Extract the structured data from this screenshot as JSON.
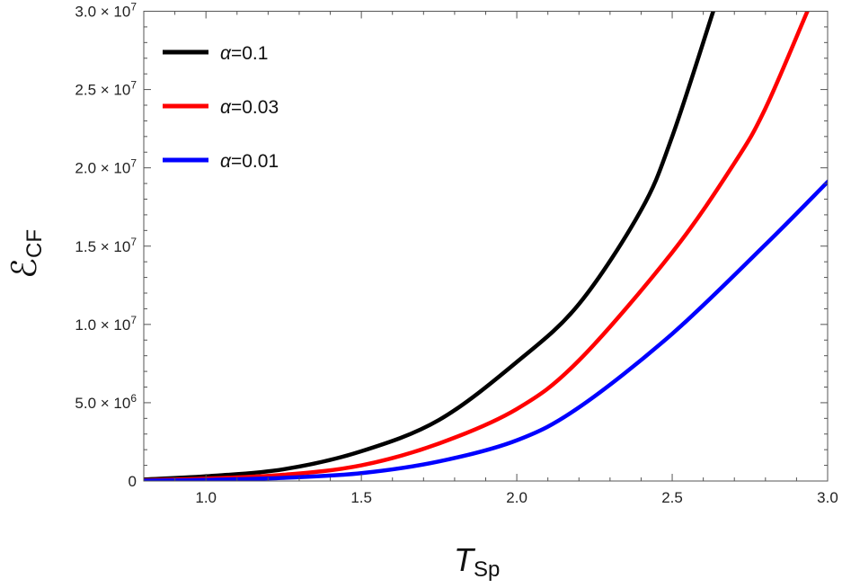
{
  "chart_data": {
    "type": "line",
    "title": "",
    "xlabel": {
      "main": "T",
      "sub": "Sp"
    },
    "ylabel": {
      "main": "ℰ",
      "sub": "CF"
    },
    "xlim": [
      0.8,
      3.0
    ],
    "ylim": [
      0,
      30000000
    ],
    "grid": false,
    "legend_placement": "top-left",
    "x_ticks": [
      {
        "value": 1.0,
        "label": "1.0"
      },
      {
        "value": 1.5,
        "label": "1.5"
      },
      {
        "value": 2.0,
        "label": "2.0"
      },
      {
        "value": 2.5,
        "label": "2.5"
      },
      {
        "value": 3.0,
        "label": "3.0"
      }
    ],
    "y_ticks": [
      {
        "value": 0,
        "label": "0",
        "exp": ""
      },
      {
        "value": 5000000,
        "label": "5.0 × 10",
        "exp": "6"
      },
      {
        "value": 10000000,
        "label": "1.0 × 10",
        "exp": "7"
      },
      {
        "value": 15000000,
        "label": "1.5 × 10",
        "exp": "7"
      },
      {
        "value": 20000000,
        "label": "2.0 × 10",
        "exp": "7"
      },
      {
        "value": 25000000,
        "label": "2.5 × 10",
        "exp": "7"
      },
      {
        "value": 30000000,
        "label": "3.0 × 10",
        "exp": "7"
      }
    ],
    "series": [
      {
        "name": "α=0.1",
        "color": "#000000",
        "x": [
          0.8,
          1.0,
          1.25,
          1.5,
          1.75,
          2.0,
          2.2,
          2.4,
          2.5,
          2.632
        ],
        "y": [
          100000,
          300000,
          750000,
          1900000,
          3900000,
          7600000,
          11300000,
          17300000,
          22000000,
          30000000
        ]
      },
      {
        "name": "α=0.03",
        "color": "#ff0000",
        "x": [
          0.8,
          1.0,
          1.25,
          1.5,
          1.75,
          2.0,
          2.2,
          2.5,
          2.7,
          2.8,
          2.935
        ],
        "y": [
          50000,
          150000,
          400000,
          1000000,
          2400000,
          4600000,
          7700000,
          14600000,
          20300000,
          23800000,
          30000000
        ]
      },
      {
        "name": "α=0.01",
        "color": "#0000ff",
        "x": [
          0.8,
          1.0,
          1.25,
          1.5,
          1.75,
          2.0,
          2.2,
          2.5,
          2.8,
          3.0
        ],
        "y": [
          20000,
          70000,
          200000,
          500000,
          1250000,
          2600000,
          4700000,
          9400000,
          15100000,
          19100000
        ]
      }
    ]
  }
}
